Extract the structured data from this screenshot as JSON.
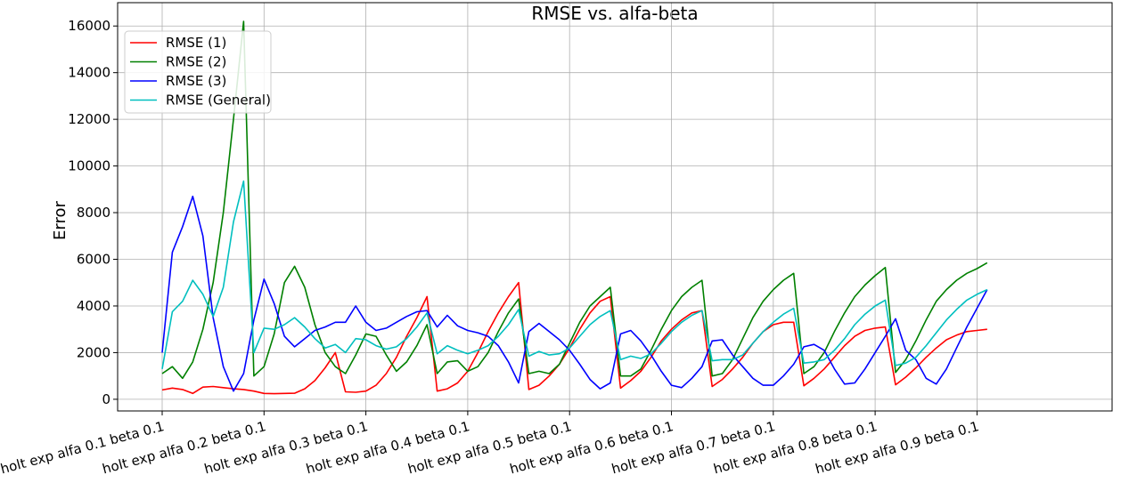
{
  "chart_data": {
    "type": "line",
    "title": "RMSE vs. alfa-beta",
    "xlabel": "",
    "ylabel": "Error",
    "ylim": [
      -500,
      17000
    ],
    "yticks": [
      0,
      2000,
      4000,
      6000,
      8000,
      10000,
      12000,
      14000,
      16000
    ],
    "xtick_labels": [
      "holt exp alfa 0.1 beta 0.1",
      "holt exp alfa 0.2 beta 0.1",
      "holt exp alfa 0.3 beta 0.1",
      "holt exp alfa 0.4 beta 0.1",
      "holt exp alfa 0.5 beta 0.1",
      "holt exp alfa 0.6 beta 0.1",
      "holt exp alfa 0.7 beta 0.1",
      "holt exp alfa 0.8 beta 0.1",
      "holt exp alfa 0.9 beta 0.1"
    ],
    "grid": true,
    "legend_position": "top-left",
    "series": [
      {
        "name": "RMSE (1)",
        "color": "#ff0000",
        "values": [
          400,
          480,
          420,
          250,
          520,
          550,
          500,
          450,
          420,
          350,
          250,
          240,
          250,
          260,
          450,
          800,
          1350,
          2000,
          320,
          300,
          350,
          600,
          1100,
          1800,
          2700,
          3500,
          4400,
          350,
          450,
          700,
          1200,
          2000,
          2900,
          3700,
          4400,
          5000,
          420,
          600,
          1000,
          1500,
          2200,
          3000,
          3700,
          4200,
          4400,
          480,
          800,
          1200,
          1800,
          2500,
          3000,
          3400,
          3700,
          3800,
          550,
          850,
          1300,
          1800,
          2400,
          2900,
          3200,
          3300,
          3300,
          580,
          900,
          1300,
          1800,
          2300,
          2700,
          2950,
          3050,
          3100,
          620,
          950,
          1350,
          1800,
          2200,
          2550,
          2750,
          2900,
          2950,
          3000
        ]
      },
      {
        "name": "RMSE (2)",
        "color": "#008000",
        "values": [
          1100,
          1400,
          900,
          1600,
          3000,
          5000,
          8000,
          12000,
          16200,
          1000,
          1400,
          2800,
          5000,
          5700,
          4800,
          3200,
          2000,
          1400,
          1100,
          1900,
          2800,
          2700,
          1900,
          1200,
          1600,
          2300,
          3200,
          1100,
          1600,
          1650,
          1200,
          1400,
          2000,
          2900,
          3700,
          4300,
          1100,
          1200,
          1100,
          1500,
          2400,
          3300,
          4000,
          4400,
          4800,
          1000,
          1000,
          1300,
          2100,
          3000,
          3800,
          4400,
          4800,
          5100,
          1000,
          1100,
          1700,
          2600,
          3500,
          4200,
          4700,
          5100,
          5400,
          1100,
          1400,
          2000,
          2900,
          3700,
          4400,
          4900,
          5300,
          5650,
          1150,
          1700,
          2500,
          3400,
          4200,
          4700,
          5100,
          5400,
          5600,
          5850
        ]
      },
      {
        "name": "RMSE (3)",
        "color": "#0000ff",
        "values": [
          2000,
          6300,
          7400,
          8700,
          7000,
          3500,
          1400,
          350,
          1100,
          3400,
          5150,
          4100,
          2700,
          2250,
          2600,
          2950,
          3100,
          3300,
          3300,
          4000,
          3300,
          2950,
          3050,
          3300,
          3550,
          3750,
          3800,
          3100,
          3600,
          3150,
          2950,
          2850,
          2700,
          2300,
          1600,
          700,
          2900,
          3250,
          2900,
          2550,
          2100,
          1500,
          850,
          450,
          700,
          2800,
          2950,
          2500,
          1900,
          1200,
          600,
          500,
          900,
          1400,
          2500,
          2550,
          1900,
          1400,
          900,
          600,
          600,
          1000,
          1500,
          2250,
          2350,
          2100,
          1300,
          650,
          700,
          1300,
          2000,
          2700,
          3450,
          2100,
          1700,
          900,
          650,
          1300,
          2200,
          3100,
          3900,
          4700
        ]
      },
      {
        "name": "RMSE (General)",
        "color": "#00bfbf",
        "values": [
          1300,
          3750,
          4200,
          5100,
          4500,
          3550,
          4800,
          7600,
          9350,
          2000,
          3050,
          3000,
          3200,
          3500,
          3100,
          2600,
          2200,
          2350,
          2000,
          2600,
          2550,
          2300,
          2150,
          2250,
          2600,
          3100,
          3700,
          1950,
          2300,
          2100,
          1950,
          2100,
          2300,
          2700,
          3200,
          3850,
          1850,
          2050,
          1900,
          1950,
          2200,
          2700,
          3200,
          3550,
          3800,
          1700,
          1850,
          1750,
          1950,
          2400,
          2900,
          3300,
          3600,
          3800,
          1650,
          1700,
          1700,
          1900,
          2400,
          2900,
          3300,
          3650,
          3900,
          1550,
          1600,
          1700,
          2100,
          2600,
          3200,
          3650,
          4000,
          4250,
          1450,
          1550,
          1800,
          2300,
          2850,
          3400,
          3850,
          4250,
          4500,
          4700
        ]
      }
    ]
  }
}
